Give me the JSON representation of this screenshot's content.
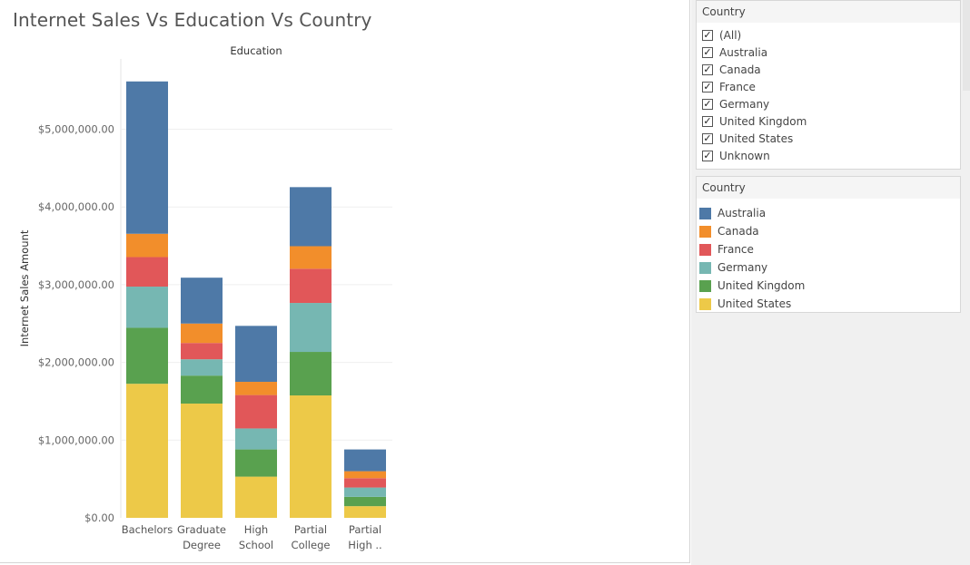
{
  "title": "Internet Sales Vs Education Vs Country",
  "filter": {
    "header": "Country",
    "items": [
      {
        "label": "(All)",
        "checked": true
      },
      {
        "label": "Australia",
        "checked": true
      },
      {
        "label": "Canada",
        "checked": true
      },
      {
        "label": "France",
        "checked": true
      },
      {
        "label": "Germany",
        "checked": true
      },
      {
        "label": "United Kingdom",
        "checked": true
      },
      {
        "label": "United States",
        "checked": true
      },
      {
        "label": "Unknown",
        "checked": true
      }
    ]
  },
  "legend": {
    "header": "Country",
    "items": [
      {
        "label": "Australia",
        "color": "#4e79a7"
      },
      {
        "label": "Canada",
        "color": "#f28e2b"
      },
      {
        "label": "France",
        "color": "#e15759"
      },
      {
        "label": "Germany",
        "color": "#76b7b2"
      },
      {
        "label": "United Kingdom",
        "color": "#59a14f"
      },
      {
        "label": "United States",
        "color": "#edc948"
      }
    ]
  },
  "chart_data": {
    "type": "bar",
    "stacked": true,
    "title": "Internet Sales Vs Education Vs Country",
    "xlabel": "Education",
    "ylabel": "Internet Sales Amount",
    "categories": [
      [
        "Bachelors"
      ],
      [
        "Graduate",
        "Degree"
      ],
      [
        "High",
        "School"
      ],
      [
        "Partial",
        "College"
      ],
      [
        "Partial",
        "High .."
      ]
    ],
    "yticks": [
      {
        "value": 0,
        "label": "$0.00"
      },
      {
        "value": 1000000,
        "label": "$1,000,000.00"
      },
      {
        "value": 2000000,
        "label": "$2,000,000.00"
      },
      {
        "value": 3000000,
        "label": "$3,000,000.00"
      },
      {
        "value": 4000000,
        "label": "$4,000,000.00"
      },
      {
        "value": 5000000,
        "label": "$5,000,000.00"
      }
    ],
    "ylim": [
      0,
      5800000
    ],
    "grid": true,
    "series": [
      {
        "name": "United States",
        "color": "#edc948",
        "values": [
          1725000,
          1470000,
          530000,
          1575000,
          150000
        ]
      },
      {
        "name": "United Kingdom",
        "color": "#59a14f",
        "values": [
          720000,
          360000,
          350000,
          560000,
          120000
        ]
      },
      {
        "name": "Germany",
        "color": "#76b7b2",
        "values": [
          530000,
          210000,
          270000,
          630000,
          120000
        ]
      },
      {
        "name": "France",
        "color": "#e15759",
        "values": [
          380000,
          210000,
          430000,
          440000,
          120000
        ]
      },
      {
        "name": "Canada",
        "color": "#f28e2b",
        "values": [
          300000,
          250000,
          170000,
          290000,
          90000
        ]
      },
      {
        "name": "Australia",
        "color": "#4e79a7",
        "values": [
          1960000,
          590000,
          720000,
          760000,
          280000
        ]
      }
    ]
  }
}
